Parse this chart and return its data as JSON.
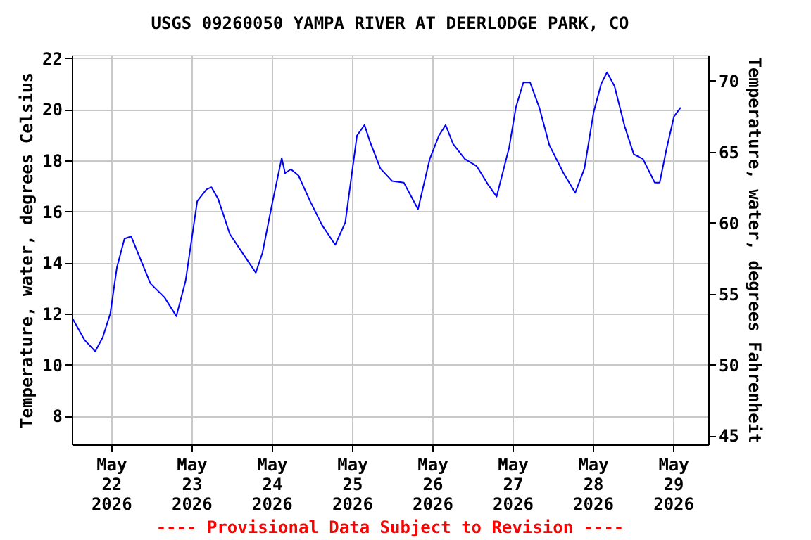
{
  "chart_data": {
    "type": "line",
    "title": "USGS 09260050 YAMPA RIVER AT DEERLODGE PARK, CO",
    "ylabel": "Temperature, water, degrees Celsius",
    "y2label": "Temperature, water, degrees Fahrenheit",
    "annotations": [
      "---- Provisional Data Subject to Revision ----"
    ],
    "x": [
      "2026-05-21T12:30",
      "2026-05-21T16:00",
      "2026-05-21T19:15",
      "2026-05-21T21:30",
      "2026-05-21T23:45",
      "2026-05-22T01:45",
      "2026-05-22T04:00",
      "2026-05-22T06:00",
      "2026-05-22T08:00",
      "2026-05-22T11:45",
      "2026-05-22T16:00",
      "2026-05-22T19:30",
      "2026-05-22T22:15",
      "2026-05-23T01:45",
      "2026-05-23T04:30",
      "2026-05-23T06:00",
      "2026-05-23T08:00",
      "2026-05-23T11:30",
      "2026-05-23T15:45",
      "2026-05-23T19:15",
      "2026-05-23T21:15",
      "2026-05-24T00:00",
      "2026-05-24T03:00",
      "2026-05-24T04:00",
      "2026-05-24T05:45",
      "2026-05-24T08:00",
      "2026-05-24T11:30",
      "2026-05-24T15:00",
      "2026-05-24T19:00",
      "2026-05-24T22:00",
      "2026-05-25T01:30",
      "2026-05-25T03:45",
      "2026-05-25T05:30",
      "2026-05-25T08:30",
      "2026-05-25T12:00",
      "2026-05-25T15:30",
      "2026-05-25T19:45",
      "2026-05-25T23:15",
      "2026-05-26T02:00",
      "2026-05-26T04:00",
      "2026-05-26T06:15",
      "2026-05-26T09:45",
      "2026-05-26T13:15",
      "2026-05-26T16:45",
      "2026-05-26T19:15",
      "2026-05-26T23:00",
      "2026-05-27T01:00",
      "2026-05-27T03:15",
      "2026-05-27T05:15",
      "2026-05-27T08:00",
      "2026-05-27T11:00",
      "2026-05-27T15:15",
      "2026-05-27T18:45",
      "2026-05-27T21:30",
      "2026-05-28T00:15",
      "2026-05-28T02:30",
      "2026-05-28T04:15",
      "2026-05-28T06:30",
      "2026-05-28T09:30",
      "2026-05-28T12:15",
      "2026-05-28T15:00",
      "2026-05-28T18:30",
      "2026-05-28T20:00",
      "2026-05-28T22:00",
      "2026-05-29T00:15",
      "2026-05-29T02:15"
    ],
    "series": [
      {
        "color": "#0000ff",
        "values": [
          11.8,
          10.98,
          10.52,
          11.07,
          12.0,
          13.82,
          14.93,
          15.02,
          14.38,
          13.18,
          12.63,
          11.9,
          13.27,
          16.4,
          16.86,
          16.95,
          16.49,
          15.11,
          14.28,
          13.6,
          14.38,
          16.21,
          18.09,
          17.5,
          17.65,
          17.41,
          16.4,
          15.48,
          14.69,
          15.57,
          18.97,
          19.38,
          18.69,
          17.68,
          17.19,
          17.13,
          16.09,
          18.05,
          18.97,
          19.38,
          18.64,
          18.05,
          17.78,
          17.04,
          16.58,
          18.51,
          20.07,
          21.05,
          21.05,
          20.07,
          18.6,
          17.5,
          16.73,
          17.68,
          19.89,
          20.99,
          21.45,
          20.9,
          19.34,
          18.24,
          18.05,
          17.13,
          17.13,
          18.42,
          19.71,
          20.07
        ]
      }
    ],
    "xlim": [
      "2026-05-21T12:15",
      "2026-05-29T10:30"
    ],
    "xticks": [
      {
        "value": "2026-05-22",
        "label": "May 22 2026"
      },
      {
        "value": "2026-05-23",
        "label": "May 23 2026"
      },
      {
        "value": "2026-05-24",
        "label": "May 24 2026"
      },
      {
        "value": "2026-05-25",
        "label": "May 25 2026"
      },
      {
        "value": "2026-05-26",
        "label": "May 26 2026"
      },
      {
        "value": "2026-05-27",
        "label": "May 27 2026"
      },
      {
        "value": "2026-05-28",
        "label": "May 28 2026"
      },
      {
        "value": "2026-05-29",
        "label": "May 29 2026"
      }
    ],
    "ylim": [
      6.88,
      22.13
    ],
    "yticks": [
      8,
      10,
      12,
      14,
      16,
      18,
      20,
      22
    ],
    "y2lim": [
      44.38,
      71.83
    ],
    "y2ticks": [
      45,
      50,
      55,
      60,
      65,
      70
    ],
    "grid": true
  }
}
